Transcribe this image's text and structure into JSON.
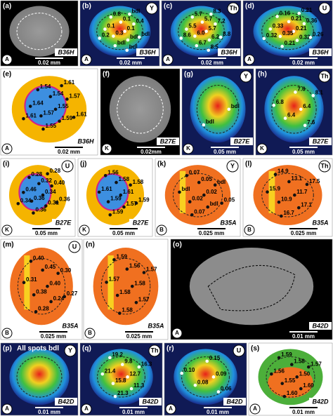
{
  "panels": [
    {
      "label": "(a)",
      "kind": "sem",
      "sample": "B36H",
      "scale": "0.02 mm",
      "corner": "A",
      "spots": []
    },
    {
      "label": "(b)",
      "kind": "map",
      "sample": "B36H",
      "element": "Y",
      "scale": "0.02 mm",
      "corner": "A",
      "spots": [
        "0.1",
        "0.3",
        "0.1",
        "bdl",
        "0.1",
        "0.4",
        "bdl",
        "0.8",
        "bdl",
        "0.2",
        "bdl",
        "bdl"
      ]
    },
    {
      "label": "(c)",
      "kind": "map",
      "sample": "B36H",
      "element": "Th",
      "scale": "0.02 mm",
      "corner": "A",
      "spots": [
        "5.7",
        "6.0",
        "5.7",
        "6.2",
        "5.5",
        "7.2",
        "6.7",
        "5.7",
        "8.8",
        "8.6",
        "8.3",
        "8.5"
      ]
    },
    {
      "label": "(d)",
      "kind": "map",
      "sample": "B36H",
      "element": "U",
      "scale": "0.02 mm",
      "corner": "A",
      "spots": [
        "0.21",
        "0.35",
        "0.21",
        "0.32",
        "0.33",
        "0.36",
        "0.21",
        "0.16",
        "0.26",
        "0.32",
        "0.21"
      ]
    },
    {
      "label": "(e)",
      "kind": "phase",
      "sample": "B36H",
      "scale": "0.02 mm",
      "corner": "A",
      "spots": [
        "1.55",
        "1.57",
        "1.54",
        "1.59",
        "1.64",
        "1.57",
        "1.55",
        "1.54",
        "1.61",
        "1.61",
        "1.61"
      ]
    },
    {
      "label": "(f)",
      "kind": "sem",
      "sample": "B27E",
      "scale": "0.02mm",
      "corner": "K",
      "spots": []
    },
    {
      "label": "(g)",
      "kind": "map",
      "sample": "B27E",
      "element": "Y",
      "scale": "0.05 mm",
      "corner": "K",
      "spots": [
        "bdl",
        "bdl"
      ]
    },
    {
      "label": "(h)",
      "kind": "map",
      "sample": "B27E",
      "element": "Th",
      "scale": "0.05 mm",
      "corner": "K",
      "spots": [
        "6.4",
        "6.4",
        "7.6",
        "7.6",
        "6.8",
        "8.1"
      ]
    },
    {
      "label": "(i)",
      "kind": "phase",
      "sample": "B27E",
      "element": "U",
      "scale": "0.05 mm",
      "corner": "K",
      "spots": [
        "0.34",
        "0.36",
        "0.32",
        "0.31",
        "0.46",
        "0.40",
        "0.36",
        "0.28",
        "0.36",
        "0.34",
        "0.28"
      ]
    },
    {
      "label": "(j)",
      "kind": "phase",
      "sample": "B27E",
      "scale": "0.05 mm",
      "corner": "K",
      "spots": [
        "1.61",
        "1.59",
        "1.58",
        "1.57",
        "1.61",
        "1.58",
        "1.59",
        "1.56",
        "1.59"
      ]
    },
    {
      "label": "(k)",
      "kind": "phase2",
      "sample": "B35A",
      "element": "Y",
      "scale": "0.025 mm",
      "corner": "B",
      "spots": [
        "0.02",
        "0.02",
        "0.05",
        "bdl",
        "bdl",
        "bdl",
        "0.07",
        "0.07",
        "0.05"
      ]
    },
    {
      "label": "(l)",
      "kind": "phase2",
      "sample": "B35A",
      "element": "Th",
      "scale": "0.025 mm",
      "corner": "B",
      "spots": [
        "11.7",
        "10.9",
        "13.1",
        "17.1",
        "15.9",
        "17.5",
        "16.7",
        "14.9"
      ]
    },
    {
      "label": "(m)",
      "kind": "phase2",
      "sample": "B35A",
      "element": "U",
      "scale": "0.025 mm",
      "corner": "B",
      "spots": [
        "0.40",
        "0.38",
        "0.45",
        "0.24",
        "0.31",
        "0.30",
        "0.28",
        "0.40",
        "0.27"
      ]
    },
    {
      "label": "(n)",
      "kind": "phase2",
      "sample": "B35A",
      "scale": "0.025 mm",
      "corner": "B",
      "spots": [
        "1.58",
        "1.58",
        "1.56",
        "1.57",
        "1.57",
        "1.57",
        "1.58",
        "1.59"
      ]
    },
    {
      "label": "(o)",
      "kind": "sem2",
      "sample": "B42D",
      "scale": "0.01 mm",
      "corner": "A",
      "spots": []
    },
    {
      "label": "(p)",
      "kind": "map",
      "sample": "B42D",
      "element": "Y",
      "note": "All spots bdl",
      "scale": "0.01 mm",
      "corner": "A",
      "spots": []
    },
    {
      "label": "(q)",
      "kind": "map",
      "sample": "B42D",
      "element": "Th",
      "scale": "0.01 mm",
      "corner": "A",
      "spots": [
        "12.7",
        "15.8",
        "9.8",
        "11.3",
        "21.4",
        "16.3",
        "21.3",
        "19.2"
      ]
    },
    {
      "label": "(r)",
      "kind": "map",
      "sample": "B42D",
      "element": "U",
      "scale": "0.01 mm",
      "corner": "A",
      "spots": [
        "0.09",
        "0.08",
        "0.15",
        "0.06",
        "0.10"
      ]
    },
    {
      "label": "(s)",
      "kind": "green",
      "sample": "B42D",
      "scale": "0.01 mm",
      "corner": "A",
      "spots": [
        "1.50",
        "1.55",
        "1.58",
        "1.60",
        "1.56",
        "1.57",
        "1.60",
        "1.59"
      ]
    }
  ]
}
